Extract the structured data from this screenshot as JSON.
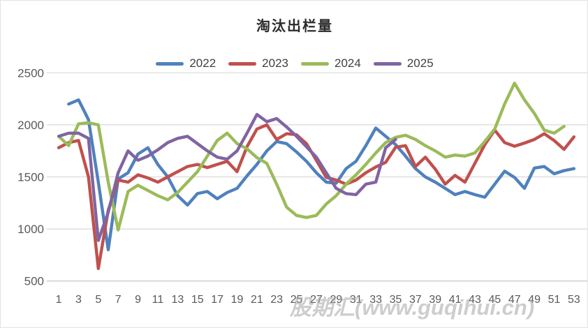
{
  "frame_title": "淘汰出栏量",
  "watermark": "股期汇(www.guqihui.cn)",
  "colors": {
    "grid": "#d9d9d9",
    "axis": "#bfbfbf",
    "tick_label": "#595959",
    "legend_text": "#404040"
  },
  "chart_data": {
    "type": "line",
    "title": "淘汰出栏量",
    "xlabel": "",
    "ylabel": "",
    "ylim": [
      500,
      2500
    ],
    "y_ticks": [
      500,
      1000,
      1500,
      2000,
      2500
    ],
    "x_weeks": 53,
    "x_tick_labels": [
      1,
      3,
      5,
      7,
      9,
      11,
      13,
      15,
      17,
      19,
      21,
      23,
      25,
      27,
      29,
      31,
      33,
      35,
      37,
      39,
      41,
      43,
      45,
      47,
      49,
      51,
      53
    ],
    "grid": "horizontal",
    "legend_position": "top",
    "series": [
      {
        "name": "2022",
        "color": "#4F81BD",
        "values": [
          null,
          2200,
          2240,
          2050,
          1450,
          800,
          1480,
          1540,
          1720,
          1780,
          1620,
          1500,
          1320,
          1230,
          1340,
          1360,
          1290,
          1350,
          1390,
          1510,
          1620,
          1750,
          1840,
          1820,
          1740,
          1650,
          1540,
          1450,
          1440,
          1580,
          1650,
          1800,
          1970,
          1890,
          1810,
          1700,
          1580,
          1500,
          1450,
          1390,
          1330,
          1360,
          1330,
          1305,
          1430,
          1555,
          1495,
          1390,
          1585,
          1600,
          1530,
          1560,
          1580
        ]
      },
      {
        "name": "2023",
        "color": "#C0504D",
        "values": [
          1780,
          1830,
          1850,
          1500,
          620,
          1180,
          1470,
          1450,
          1520,
          1490,
          1450,
          1500,
          1550,
          1600,
          1620,
          1590,
          1620,
          1650,
          1550,
          1790,
          1960,
          2000,
          1860,
          1915,
          1905,
          1820,
          1660,
          1495,
          1470,
          1430,
          1470,
          1540,
          1595,
          1640,
          1785,
          1800,
          1600,
          1690,
          1575,
          1430,
          1515,
          1450,
          1630,
          1810,
          1950,
          1830,
          1795,
          1825,
          1860,
          1915,
          1850,
          1765,
          1885
        ]
      },
      {
        "name": "2024",
        "color": "#9BBB59",
        "values": [
          1890,
          1800,
          2010,
          2020,
          2000,
          1450,
          990,
          1360,
          1420,
          1370,
          1320,
          1280,
          1350,
          1450,
          1550,
          1700,
          1850,
          1920,
          1820,
          1770,
          1685,
          1630,
          1430,
          1210,
          1130,
          1110,
          1130,
          1240,
          1320,
          1430,
          1520,
          1620,
          1730,
          1830,
          1880,
          1900,
          1860,
          1800,
          1750,
          1690,
          1710,
          1700,
          1730,
          1840,
          1960,
          2200,
          2400,
          2240,
          2110,
          1950,
          1920,
          1985,
          null
        ]
      },
      {
        "name": "2025",
        "color": "#8064A2",
        "values": [
          1890,
          1920,
          1920,
          1870,
          890,
          1160,
          1540,
          1750,
          1660,
          1700,
          1760,
          1830,
          1870,
          1890,
          1820,
          1750,
          1690,
          1670,
          1750,
          1920,
          2100,
          2030,
          2060,
          1980,
          1890,
          1790,
          1690,
          1540,
          1390,
          1340,
          1330,
          1430,
          1450,
          1780,
          1860,
          null,
          null,
          null,
          null,
          null,
          null,
          null,
          null,
          null,
          null,
          null,
          null,
          null,
          null,
          null,
          null,
          null,
          null
        ]
      }
    ]
  }
}
